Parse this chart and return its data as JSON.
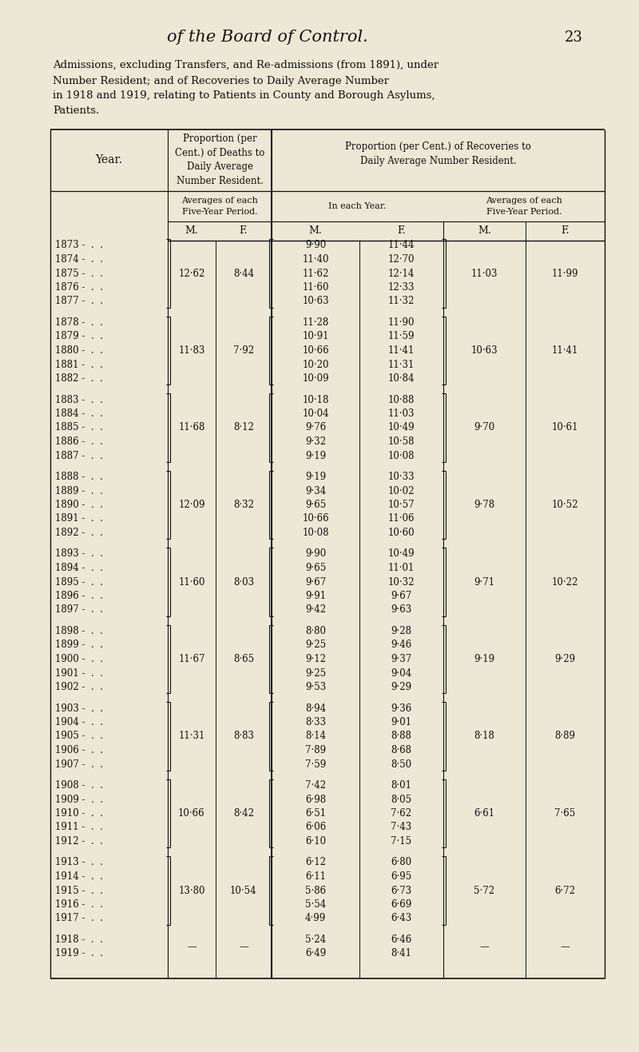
{
  "bg_color": "#ede8d5",
  "title": "of the Board of Control.",
  "page_num": "23",
  "caption": [
    "Admissions, excluding Transfers, and Re-admissions (from 1891), under",
    "Number Resident; and of Recoveries to Daily Average Number",
    "in 1918 and 1919, relating to Patients in County and Borough Asylums,",
    "Patients."
  ],
  "groups": [
    {
      "years": [
        "1873",
        "1874",
        "1875",
        "1876",
        "1877"
      ],
      "death_avg_m": "12·62",
      "death_avg_f": "8·44",
      "rec_m": [
        "9·90",
        "11·40",
        "11·62",
        "11·60",
        "10·63"
      ],
      "rec_f": [
        "11·44",
        "12·70",
        "12·14",
        "12·33",
        "11·32"
      ],
      "rec_avg_m": "11·03",
      "rec_avg_f": "11·99"
    },
    {
      "years": [
        "1878",
        "1879",
        "1880",
        "1881",
        "1882"
      ],
      "death_avg_m": "11·83",
      "death_avg_f": "7·92",
      "rec_m": [
        "11·28",
        "10·91",
        "10·66",
        "10·20",
        "10·09"
      ],
      "rec_f": [
        "11·90",
        "11·59",
        "11·41",
        "11·31",
        "10·84"
      ],
      "rec_avg_m": "10·63",
      "rec_avg_f": "11·41"
    },
    {
      "years": [
        "1883",
        "1884",
        "1885",
        "1886",
        "1887"
      ],
      "death_avg_m": "11·68",
      "death_avg_f": "8·12",
      "rec_m": [
        "10·18",
        "10·04",
        "9·76",
        "9·32",
        "9·19"
      ],
      "rec_f": [
        "10·88",
        "11·03",
        "10·49",
        "10·58",
        "10·08"
      ],
      "rec_avg_m": "9·70",
      "rec_avg_f": "10·61"
    },
    {
      "years": [
        "1888",
        "1889",
        "1890",
        "1891",
        "1892"
      ],
      "death_avg_m": "12·09",
      "death_avg_f": "8·32",
      "rec_m": [
        "9·19",
        "9·34",
        "9·65",
        "10·66",
        "10·08"
      ],
      "rec_f": [
        "10·33",
        "10·02",
        "10·57",
        "11·06",
        "10·60"
      ],
      "rec_avg_m": "9·78",
      "rec_avg_f": "10·52"
    },
    {
      "years": [
        "1893",
        "1894",
        "1895",
        "1896",
        "1897"
      ],
      "death_avg_m": "11·60",
      "death_avg_f": "8·03",
      "rec_m": [
        "9·90",
        "9·65",
        "9·67",
        "9·91",
        "9·42"
      ],
      "rec_f": [
        "10·49",
        "11·01",
        "10·32",
        "9·67",
        "9·63"
      ],
      "rec_avg_m": "9·71",
      "rec_avg_f": "10·22"
    },
    {
      "years": [
        "1898",
        "1899",
        "1900",
        "1901",
        "1902"
      ],
      "death_avg_m": "11·67",
      "death_avg_f": "8·65",
      "rec_m": [
        "8·80",
        "9·25",
        "9·12",
        "9·25",
        "9·53"
      ],
      "rec_f": [
        "9·28",
        "9·46",
        "9·37",
        "9·04",
        "9·29"
      ],
      "rec_avg_m": "9·19",
      "rec_avg_f": "9·29"
    },
    {
      "years": [
        "1903",
        "1904",
        "1905",
        "1906",
        "1907"
      ],
      "death_avg_m": "11·31",
      "death_avg_f": "8·83",
      "rec_m": [
        "8·94",
        "8·33",
        "8·14",
        "7·89",
        "7·59"
      ],
      "rec_f": [
        "9·36",
        "9·01",
        "8·88",
        "8·68",
        "8·50"
      ],
      "rec_avg_m": "8·18",
      "rec_avg_f": "8·89"
    },
    {
      "years": [
        "1908",
        "1909",
        "1910",
        "1911",
        "1912"
      ],
      "death_avg_m": "10·66",
      "death_avg_f": "8·42",
      "rec_m": [
        "7·42",
        "6·98",
        "6·51",
        "6·06",
        "6·10"
      ],
      "rec_f": [
        "8·01",
        "8·05",
        "7·62",
        "7·43",
        "7·15"
      ],
      "rec_avg_m": "6·61",
      "rec_avg_f": "7·65"
    },
    {
      "years": [
        "1913",
        "1914",
        "1915",
        "1916",
        "1917"
      ],
      "death_avg_m": "13·80",
      "death_avg_f": "10·54",
      "rec_m": [
        "6·12",
        "6·11",
        "5·86",
        "5·54",
        "4·99"
      ],
      "rec_f": [
        "6·80",
        "6·95",
        "6·73",
        "6·69",
        "6·43"
      ],
      "rec_avg_m": "5·72",
      "rec_avg_f": "6·72"
    },
    {
      "years": [
        "1918",
        "1919"
      ],
      "death_avg_m": "—",
      "death_avg_f": "—",
      "rec_m": [
        "5·24",
        "6·49"
      ],
      "rec_f": [
        "6·46",
        "8·41"
      ],
      "rec_avg_m": "—",
      "rec_avg_f": "—"
    }
  ]
}
